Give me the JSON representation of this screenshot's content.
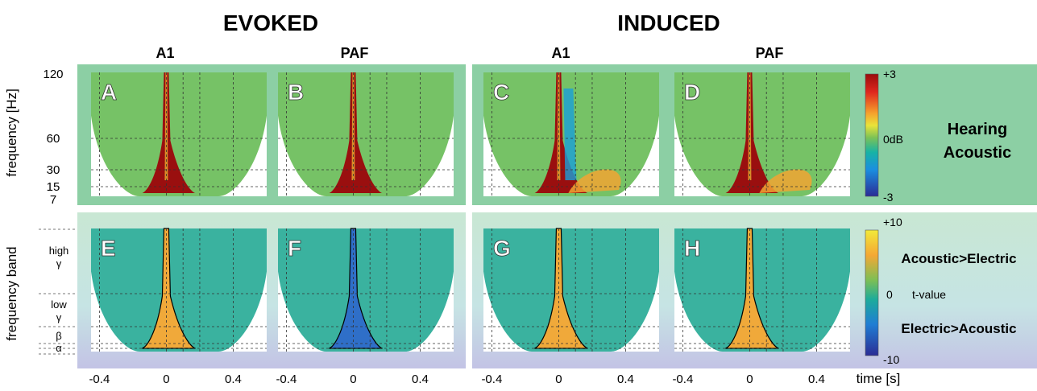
{
  "headers": {
    "evoked": "EVOKED",
    "induced": "INDUCED",
    "a1_left": "A1",
    "paf_left": "PAF",
    "a1_right": "A1",
    "paf_right": "PAF"
  },
  "row_labels": {
    "top_ylabel": "frequency [Hz]",
    "bottom_ylabel": "frequency band",
    "top_condition_line1": "Hearing",
    "top_condition_line2": "Acoustic",
    "bottom_contrast_pos": "Acoustic>Electric",
    "bottom_contrast_neg": "Electric>Acoustic"
  },
  "panels": [
    "A",
    "B",
    "C",
    "D",
    "E",
    "F",
    "G",
    "H"
  ],
  "colorbars": {
    "top": {
      "max": "+3",
      "mid": "0dB",
      "min": "-3"
    },
    "bottom": {
      "max": "+10",
      "mid": "0",
      "unit": "t-value",
      "min": "-10"
    }
  },
  "colors": {
    "top_bg": "#8ccfa4",
    "bottom_bg_top": "#c8e6d2",
    "bottom_bg_bottom": "#c4c4e6",
    "strong_positive": "#9a0f0f",
    "positive": "#f0a93a",
    "negative": "#2f6fc8",
    "neutral": "#6fbf66"
  },
  "chart_data": {
    "type": "heatmap",
    "description_free": true,
    "xlabel": "time [s]",
    "x_ticks": [
      "-0.4",
      "0",
      "0.4"
    ],
    "x_tick_values": [
      -0.4,
      0,
      0.4
    ],
    "xlim": [
      -0.45,
      0.6
    ],
    "top_row": {
      "ylabel": "frequency [Hz]",
      "y_ticks": [
        "120",
        "60",
        "30",
        "15",
        "7"
      ],
      "y_tick_values": [
        120,
        60,
        30,
        15,
        7
      ],
      "colorbar_range": [
        -3,
        3
      ],
      "colorbar_unit": "dB",
      "panels": [
        {
          "id": "A",
          "condition": "EVOKED",
          "region": "A1",
          "onset_value": 3
        },
        {
          "id": "B",
          "condition": "EVOKED",
          "region": "PAF",
          "onset_value": 3
        },
        {
          "id": "C",
          "condition": "INDUCED",
          "region": "A1",
          "onset_value": 3,
          "post_onset_value": -1.5,
          "sustained_low_freq_value": 1.5
        },
        {
          "id": "D",
          "condition": "INDUCED",
          "region": "PAF",
          "onset_value": 3,
          "sustained_low_freq_value": 1.5
        }
      ]
    },
    "bottom_row": {
      "ylabel": "frequency band",
      "y_ticks": [
        "high γ",
        "low γ",
        "β",
        "α"
      ],
      "colorbar_range": [
        -10,
        10
      ],
      "colorbar_unit": "t-value",
      "panels": [
        {
          "id": "E",
          "condition": "EVOKED",
          "region": "A1",
          "dominant_value": 6
        },
        {
          "id": "F",
          "condition": "EVOKED",
          "region": "PAF",
          "dominant_value": -6
        },
        {
          "id": "G",
          "condition": "INDUCED",
          "region": "A1",
          "dominant_value": 6
        },
        {
          "id": "H",
          "condition": "INDUCED",
          "region": "PAF",
          "dominant_value": 5
        }
      ]
    }
  }
}
